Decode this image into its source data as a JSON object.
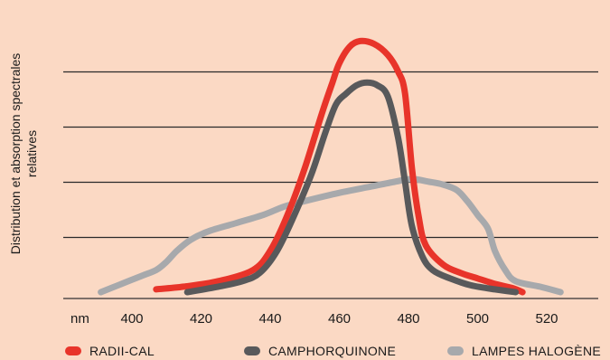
{
  "chart_data": {
    "type": "line",
    "title": "",
    "xlabel": "",
    "x_unit_label": "nm",
    "ylabel_lines": [
      "Distribution et absorption spectrales",
      "relatives"
    ],
    "xlim": [
      380,
      540
    ],
    "ylim": [
      0,
      1
    ],
    "x_ticks": [
      400,
      420,
      440,
      460,
      480,
      500,
      520
    ],
    "y_gridlines": [
      0.2,
      0.4,
      0.6,
      0.8
    ],
    "y_tick_labels_shown": false,
    "grid": "horizontal",
    "legend_position": "bottom",
    "series": [
      {
        "name": "RADII-CAL",
        "color": "#e8342a",
        "x": [
          407,
          415,
          425,
          435,
          440,
          445,
          450,
          455,
          458,
          460,
          463,
          466,
          470,
          474,
          477,
          479,
          481,
          483,
          485,
          490,
          495,
          500,
          505,
          510,
          513
        ],
        "y": [
          0.01,
          0.02,
          0.04,
          0.08,
          0.15,
          0.28,
          0.45,
          0.65,
          0.76,
          0.83,
          0.89,
          0.91,
          0.9,
          0.86,
          0.8,
          0.72,
          0.45,
          0.27,
          0.17,
          0.1,
          0.07,
          0.05,
          0.03,
          0.015,
          0.0
        ]
      },
      {
        "name": "CAMPHORQUINONE",
        "color": "#58595b",
        "x": [
          416,
          425,
          432,
          437,
          442,
          447,
          452,
          456,
          459,
          462,
          465,
          468,
          471,
          474,
          477,
          479,
          481,
          484,
          487,
          492,
          498,
          505,
          511
        ],
        "y": [
          0.0,
          0.02,
          0.04,
          0.07,
          0.15,
          0.28,
          0.43,
          0.58,
          0.68,
          0.72,
          0.75,
          0.76,
          0.75,
          0.71,
          0.56,
          0.4,
          0.24,
          0.13,
          0.08,
          0.05,
          0.025,
          0.01,
          0.0
        ]
      },
      {
        "name": "LAMPES HALOGÈNE",
        "color": "#a7a9ac",
        "x": [
          391,
          397,
          403,
          407,
          410,
          413,
          417,
          422,
          430,
          438,
          444,
          450,
          460,
          468,
          476,
          481,
          486,
          490,
          494,
          497,
          500,
          503,
          505,
          508,
          511,
          518,
          524
        ],
        "y": [
          0.0,
          0.03,
          0.06,
          0.08,
          0.11,
          0.15,
          0.19,
          0.22,
          0.25,
          0.28,
          0.31,
          0.33,
          0.36,
          0.38,
          0.4,
          0.41,
          0.4,
          0.39,
          0.37,
          0.33,
          0.28,
          0.23,
          0.15,
          0.08,
          0.04,
          0.02,
          0.0
        ]
      }
    ]
  }
}
